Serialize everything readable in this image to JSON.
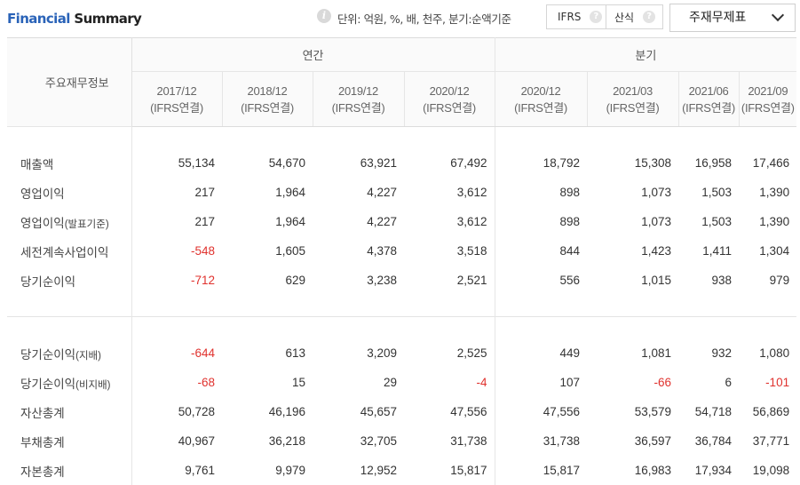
{
  "header": {
    "title_a": "Financial",
    "title_b": "Summary",
    "info_glyph": "i",
    "unit_text": "단위: 억원, %, 배, 천주, 분기:순액기준",
    "ifrs_label": "IFRS",
    "sansik_label": "산식",
    "help_glyph": "?",
    "select_label": "주재무제표"
  },
  "table": {
    "row_header": "주요재무정보",
    "groups": [
      {
        "label": "연간"
      },
      {
        "label": "분기"
      }
    ],
    "periods": [
      {
        "date": "2017/12",
        "basis": "(IFRS연결)"
      },
      {
        "date": "2018/12",
        "basis": "(IFRS연결)"
      },
      {
        "date": "2019/12",
        "basis": "(IFRS연결)"
      },
      {
        "date": "2020/12",
        "basis": "(IFRS연결)"
      },
      {
        "date": "2020/12",
        "basis": "(IFRS연결)"
      },
      {
        "date": "2021/03",
        "basis": "(IFRS연결)"
      },
      {
        "date": "2021/06",
        "basis": "(IFRS연결)"
      },
      {
        "date": "2021/09",
        "basis": "(IFRS연결)"
      }
    ],
    "rows": [
      {
        "label": "매출액",
        "sub": "",
        "values": [
          "55,134",
          "54,670",
          "63,921",
          "67,492",
          "18,792",
          "15,308",
          "16,958",
          "17,466"
        ]
      },
      {
        "label": "영업이익",
        "sub": "",
        "values": [
          "217",
          "1,964",
          "4,227",
          "3,612",
          "898",
          "1,073",
          "1,503",
          "1,390"
        ]
      },
      {
        "label": "영업이익",
        "sub": "(발표기준)",
        "values": [
          "217",
          "1,964",
          "4,227",
          "3,612",
          "898",
          "1,073",
          "1,503",
          "1,390"
        ]
      },
      {
        "label": "세전계속사업이익",
        "sub": "",
        "values": [
          "-548",
          "1,605",
          "4,378",
          "3,518",
          "844",
          "1,423",
          "1,411",
          "1,304"
        ]
      },
      {
        "label": "당기순이익",
        "sub": "",
        "values": [
          "-712",
          "629",
          "3,238",
          "2,521",
          "556",
          "1,015",
          "938",
          "979"
        ]
      },
      {
        "label": "당기순이익",
        "sub": "(지배)",
        "values": [
          "-644",
          "613",
          "3,209",
          "2,525",
          "449",
          "1,081",
          "932",
          "1,080"
        ]
      },
      {
        "label": "당기순이익",
        "sub": "(비지배)",
        "values": [
          "-68",
          "15",
          "29",
          "-4",
          "107",
          "-66",
          "6",
          "-101"
        ]
      },
      {
        "label": "자산총계",
        "sub": "",
        "values": [
          "50,728",
          "46,196",
          "45,657",
          "47,556",
          "47,556",
          "53,579",
          "54,718",
          "56,869"
        ]
      },
      {
        "label": "부채총계",
        "sub": "",
        "values": [
          "40,967",
          "36,218",
          "32,705",
          "31,738",
          "31,738",
          "36,597",
          "36,784",
          "37,771"
        ]
      },
      {
        "label": "자본총계",
        "sub": "",
        "values": [
          "9,761",
          "9,979",
          "12,952",
          "15,817",
          "15,817",
          "16,983",
          "17,934",
          "19,098"
        ]
      }
    ]
  },
  "colors": {
    "negative": "#e0322e",
    "title_accent": "#2a63b8"
  }
}
